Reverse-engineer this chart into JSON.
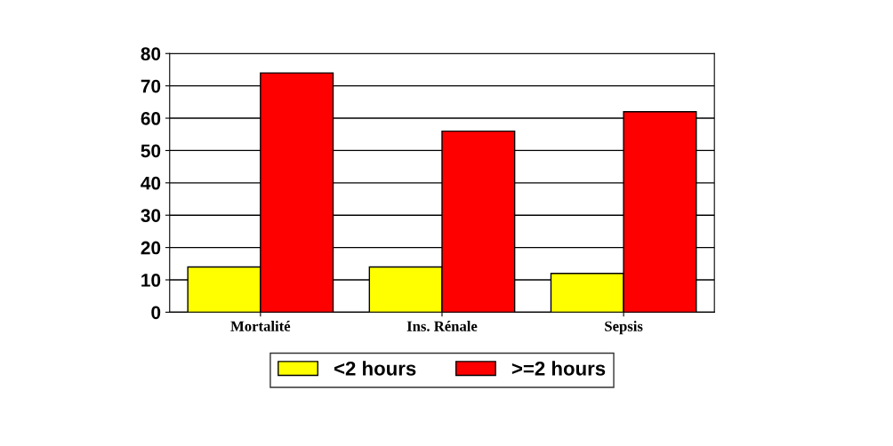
{
  "chart_data": {
    "type": "bar",
    "categories": [
      "Mortalité",
      "Ins. Rénale",
      "Sepsis"
    ],
    "series": [
      {
        "name": "<2 hours",
        "color": "#ffff00",
        "values": [
          14,
          14,
          12
        ]
      },
      {
        "name": ">=2 hours",
        "color": "#ff0000",
        "values": [
          74,
          56,
          62
        ]
      }
    ],
    "ylim": [
      0,
      80
    ],
    "yticks": [
      0,
      10,
      20,
      30,
      40,
      50,
      60,
      70,
      80
    ],
    "grid": "y",
    "legend": "bottom"
  }
}
